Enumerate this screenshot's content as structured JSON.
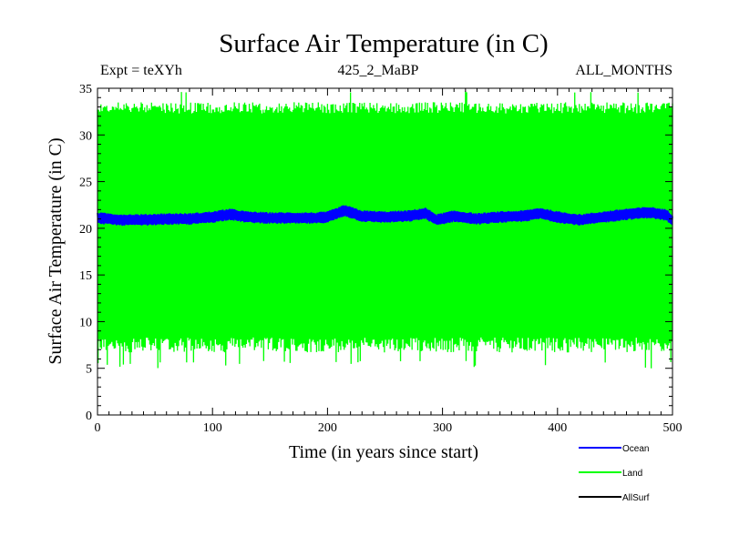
{
  "chart_data": {
    "type": "line",
    "title": "Surface Air Temperature (in C)",
    "subtitle_left": "Expt = teXYh",
    "subtitle_center": "425_2_MaBP",
    "subtitle_right": "ALL_MONTHS",
    "xlabel": "Time (in years since start)",
    "ylabel": "Surface Air Temperature (in C)",
    "xlim": [
      0,
      500
    ],
    "ylim": [
      0,
      35
    ],
    "x_ticks": [
      0,
      100,
      200,
      300,
      400,
      500
    ],
    "y_ticks": [
      0,
      5,
      10,
      15,
      20,
      25,
      30,
      35
    ],
    "series": [
      {
        "name": "Ocean",
        "color": "#0000ff",
        "mean_x": [
          0,
          20,
          40,
          60,
          80,
          100,
          115,
          130,
          150,
          170,
          190,
          200,
          215,
          230,
          250,
          270,
          285,
          295,
          310,
          330,
          350,
          370,
          385,
          400,
          420,
          440,
          460,
          480,
          495,
          500
        ],
        "mean_y": [
          21.1,
          20.9,
          20.9,
          21.0,
          21.0,
          21.2,
          21.5,
          21.2,
          21.1,
          21.1,
          21.1,
          21.2,
          21.9,
          21.3,
          21.2,
          21.3,
          21.6,
          20.9,
          21.3,
          21.0,
          21.2,
          21.3,
          21.6,
          21.2,
          20.9,
          21.2,
          21.5,
          21.7,
          21.4,
          20.8
        ],
        "seasonal_range": [
          20.4,
          21.7
        ]
      },
      {
        "name": "Land",
        "color": "#00ff00",
        "seasonal_range": [
          7.5,
          33.5
        ],
        "extreme_range": [
          5.0,
          34.8
        ]
      },
      {
        "name": "AllSurf",
        "color": "#000000"
      }
    ]
  }
}
